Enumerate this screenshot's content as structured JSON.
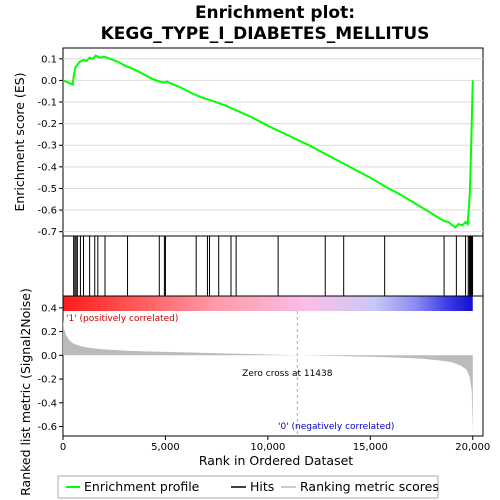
{
  "chart_data": {
    "type": "line",
    "title_line1": "Enrichment plot:",
    "title_line2": "KEGG_TYPE_I_DIABETES_MELLITUS",
    "es_panel": {
      "ylabel": "Enrichment score (ES)",
      "ylim": [
        -0.72,
        0.15
      ],
      "yticks": [
        0.1,
        0.0,
        -0.1,
        -0.2,
        -0.3,
        -0.4,
        -0.5,
        -0.6,
        -0.7
      ],
      "ytick_labels": [
        "0.1",
        "0.0",
        "-0.1",
        "-0.2",
        "-0.3",
        "-0.4",
        "-0.5",
        "-0.6",
        "-0.7"
      ],
      "line_color": "#00ff00",
      "curve": [
        [
          0,
          0.0
        ],
        [
          250,
          -0.01
        ],
        [
          480,
          -0.02
        ],
        [
          520,
          0.02
        ],
        [
          560,
          0.04
        ],
        [
          600,
          0.06
        ],
        [
          700,
          0.07
        ],
        [
          800,
          0.085
        ],
        [
          1000,
          0.095
        ],
        [
          1150,
          0.09
        ],
        [
          1300,
          0.105
        ],
        [
          1450,
          0.1
        ],
        [
          1600,
          0.115
        ],
        [
          1800,
          0.105
        ],
        [
          2000,
          0.11
        ],
        [
          2300,
          0.1
        ],
        [
          2700,
          0.085
        ],
        [
          3100,
          0.065
        ],
        [
          3200,
          0.062
        ],
        [
          3600,
          0.045
        ],
        [
          4000,
          0.025
        ],
        [
          4400,
          0.005
        ],
        [
          4700,
          -0.005
        ],
        [
          4950,
          -0.01
        ],
        [
          5050,
          -0.005
        ],
        [
          5300,
          -0.015
        ],
        [
          5800,
          -0.035
        ],
        [
          6300,
          -0.06
        ],
        [
          6800,
          -0.08
        ],
        [
          7300,
          -0.095
        ],
        [
          7900,
          -0.115
        ],
        [
          8500,
          -0.14
        ],
        [
          9200,
          -0.17
        ],
        [
          10000,
          -0.21
        ],
        [
          11000,
          -0.255
        ],
        [
          12000,
          -0.3
        ],
        [
          13000,
          -0.35
        ],
        [
          14000,
          -0.4
        ],
        [
          15000,
          -0.45
        ],
        [
          15800,
          -0.495
        ],
        [
          16500,
          -0.53
        ],
        [
          17200,
          -0.57
        ],
        [
          17900,
          -0.61
        ],
        [
          18400,
          -0.64
        ],
        [
          18600,
          -0.65
        ],
        [
          18800,
          -0.655
        ],
        [
          19000,
          -0.67
        ],
        [
          19150,
          -0.68
        ],
        [
          19300,
          -0.665
        ],
        [
          19500,
          -0.67
        ],
        [
          19650,
          -0.655
        ],
        [
          19750,
          -0.665
        ],
        [
          19800,
          -0.6
        ],
        [
          19850,
          -0.53
        ],
        [
          19880,
          -0.45
        ],
        [
          19910,
          -0.35
        ],
        [
          19940,
          -0.24
        ],
        [
          19970,
          -0.12
        ],
        [
          20000,
          0.0
        ]
      ]
    },
    "hits": [
      520,
      580,
      640,
      700,
      850,
      1000,
      1300,
      1550,
      1700,
      2050,
      3150,
      4700,
      4950,
      5000,
      6500,
      7050,
      7150,
      7600,
      8200,
      8450,
      10500,
      12800,
      13700,
      15700,
      18600,
      19200,
      19650,
      19780,
      19830,
      19870,
      19900,
      19930,
      19960,
      19990
    ],
    "color_bar": {
      "stops": [
        [
          0.0,
          "#ff1a1a"
        ],
        [
          0.18,
          "#ff5a5a"
        ],
        [
          0.37,
          "#ff9aa8"
        ],
        [
          0.6,
          "#f9bfe8"
        ],
        [
          0.76,
          "#c8c8f5"
        ],
        [
          0.86,
          "#8c8cf0"
        ],
        [
          0.94,
          "#3a3ae6"
        ],
        [
          1.0,
          "#1010d0"
        ]
      ]
    },
    "metric_panel": {
      "ylabel": "Ranked list metric (Signal2Noise)",
      "ylim": [
        -0.68,
        0.5
      ],
      "yticks": [
        0.4,
        0.2,
        0.0,
        -0.2,
        -0.4,
        -0.6
      ],
      "ytick_labels": [
        "0.4",
        "0.2",
        "0.0",
        "-0.2",
        "-0.4",
        "-0.6"
      ],
      "fill_color": "#bbbbbb",
      "curve": [
        [
          0,
          0.3
        ],
        [
          60,
          0.22
        ],
        [
          150,
          0.17
        ],
        [
          300,
          0.13
        ],
        [
          500,
          0.1
        ],
        [
          800,
          0.08
        ],
        [
          1200,
          0.065
        ],
        [
          2000,
          0.05
        ],
        [
          3000,
          0.04
        ],
        [
          4000,
          0.033
        ],
        [
          6000,
          0.025
        ],
        [
          8000,
          0.015
        ],
        [
          10000,
          0.007
        ],
        [
          11438,
          0.0
        ],
        [
          13000,
          -0.005
        ],
        [
          15000,
          -0.012
        ],
        [
          16500,
          -0.02
        ],
        [
          17500,
          -0.028
        ],
        [
          18500,
          -0.045
        ],
        [
          19000,
          -0.06
        ],
        [
          19400,
          -0.085
        ],
        [
          19700,
          -0.12
        ],
        [
          19850,
          -0.18
        ],
        [
          19950,
          -0.3
        ],
        [
          20000,
          -0.65
        ]
      ],
      "zero_cross": 11438,
      "zero_cross_label": "Zero cross at 11438",
      "pos_label": "'1' (positively correlated)",
      "neg_label": "'0' (negatively correlated)"
    },
    "xlabel": "Rank in Ordered Dataset",
    "xlim": [
      0,
      20500
    ],
    "xticks": [
      0,
      5000,
      10000,
      15000,
      20000
    ],
    "xtick_labels": [
      "0",
      "5,000",
      "10,000",
      "15,000",
      "20,000"
    ],
    "legend": {
      "placement": "bottom",
      "entries": [
        {
          "label": "Enrichment profile",
          "color": "#00ff00"
        },
        {
          "label": "Hits",
          "color": "#000000"
        },
        {
          "label": "Ranking metric scores",
          "color": "#bbbbbb"
        }
      ]
    }
  }
}
